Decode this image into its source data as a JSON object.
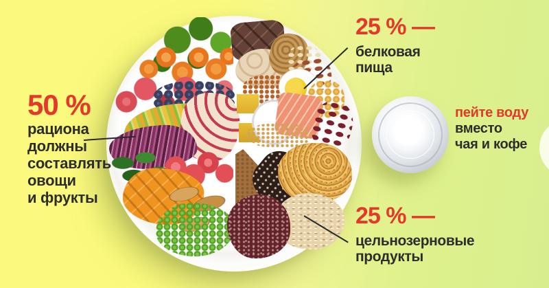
{
  "colors": {
    "background_left": "#fbfa7e",
    "background_right": "#d8ee8e",
    "accent_red": "#e2392a",
    "text_dark": "#2d2d2d",
    "plate_white": "#ffffff"
  },
  "labels": {
    "vegetables": {
      "percent": "50 %",
      "lines": [
        "рациона",
        "должны",
        "составлять",
        "овощи",
        "и фрукты"
      ]
    },
    "protein": {
      "percent": "25 % —",
      "lines": [
        "белковая",
        "пища"
      ]
    },
    "grains": {
      "percent": "25 % —",
      "lines": [
        "цельнозерновые",
        "продукты"
      ]
    },
    "water": {
      "highlight": "пейте воду",
      "lines": [
        "вместо",
        "чая и кофе"
      ]
    }
  }
}
